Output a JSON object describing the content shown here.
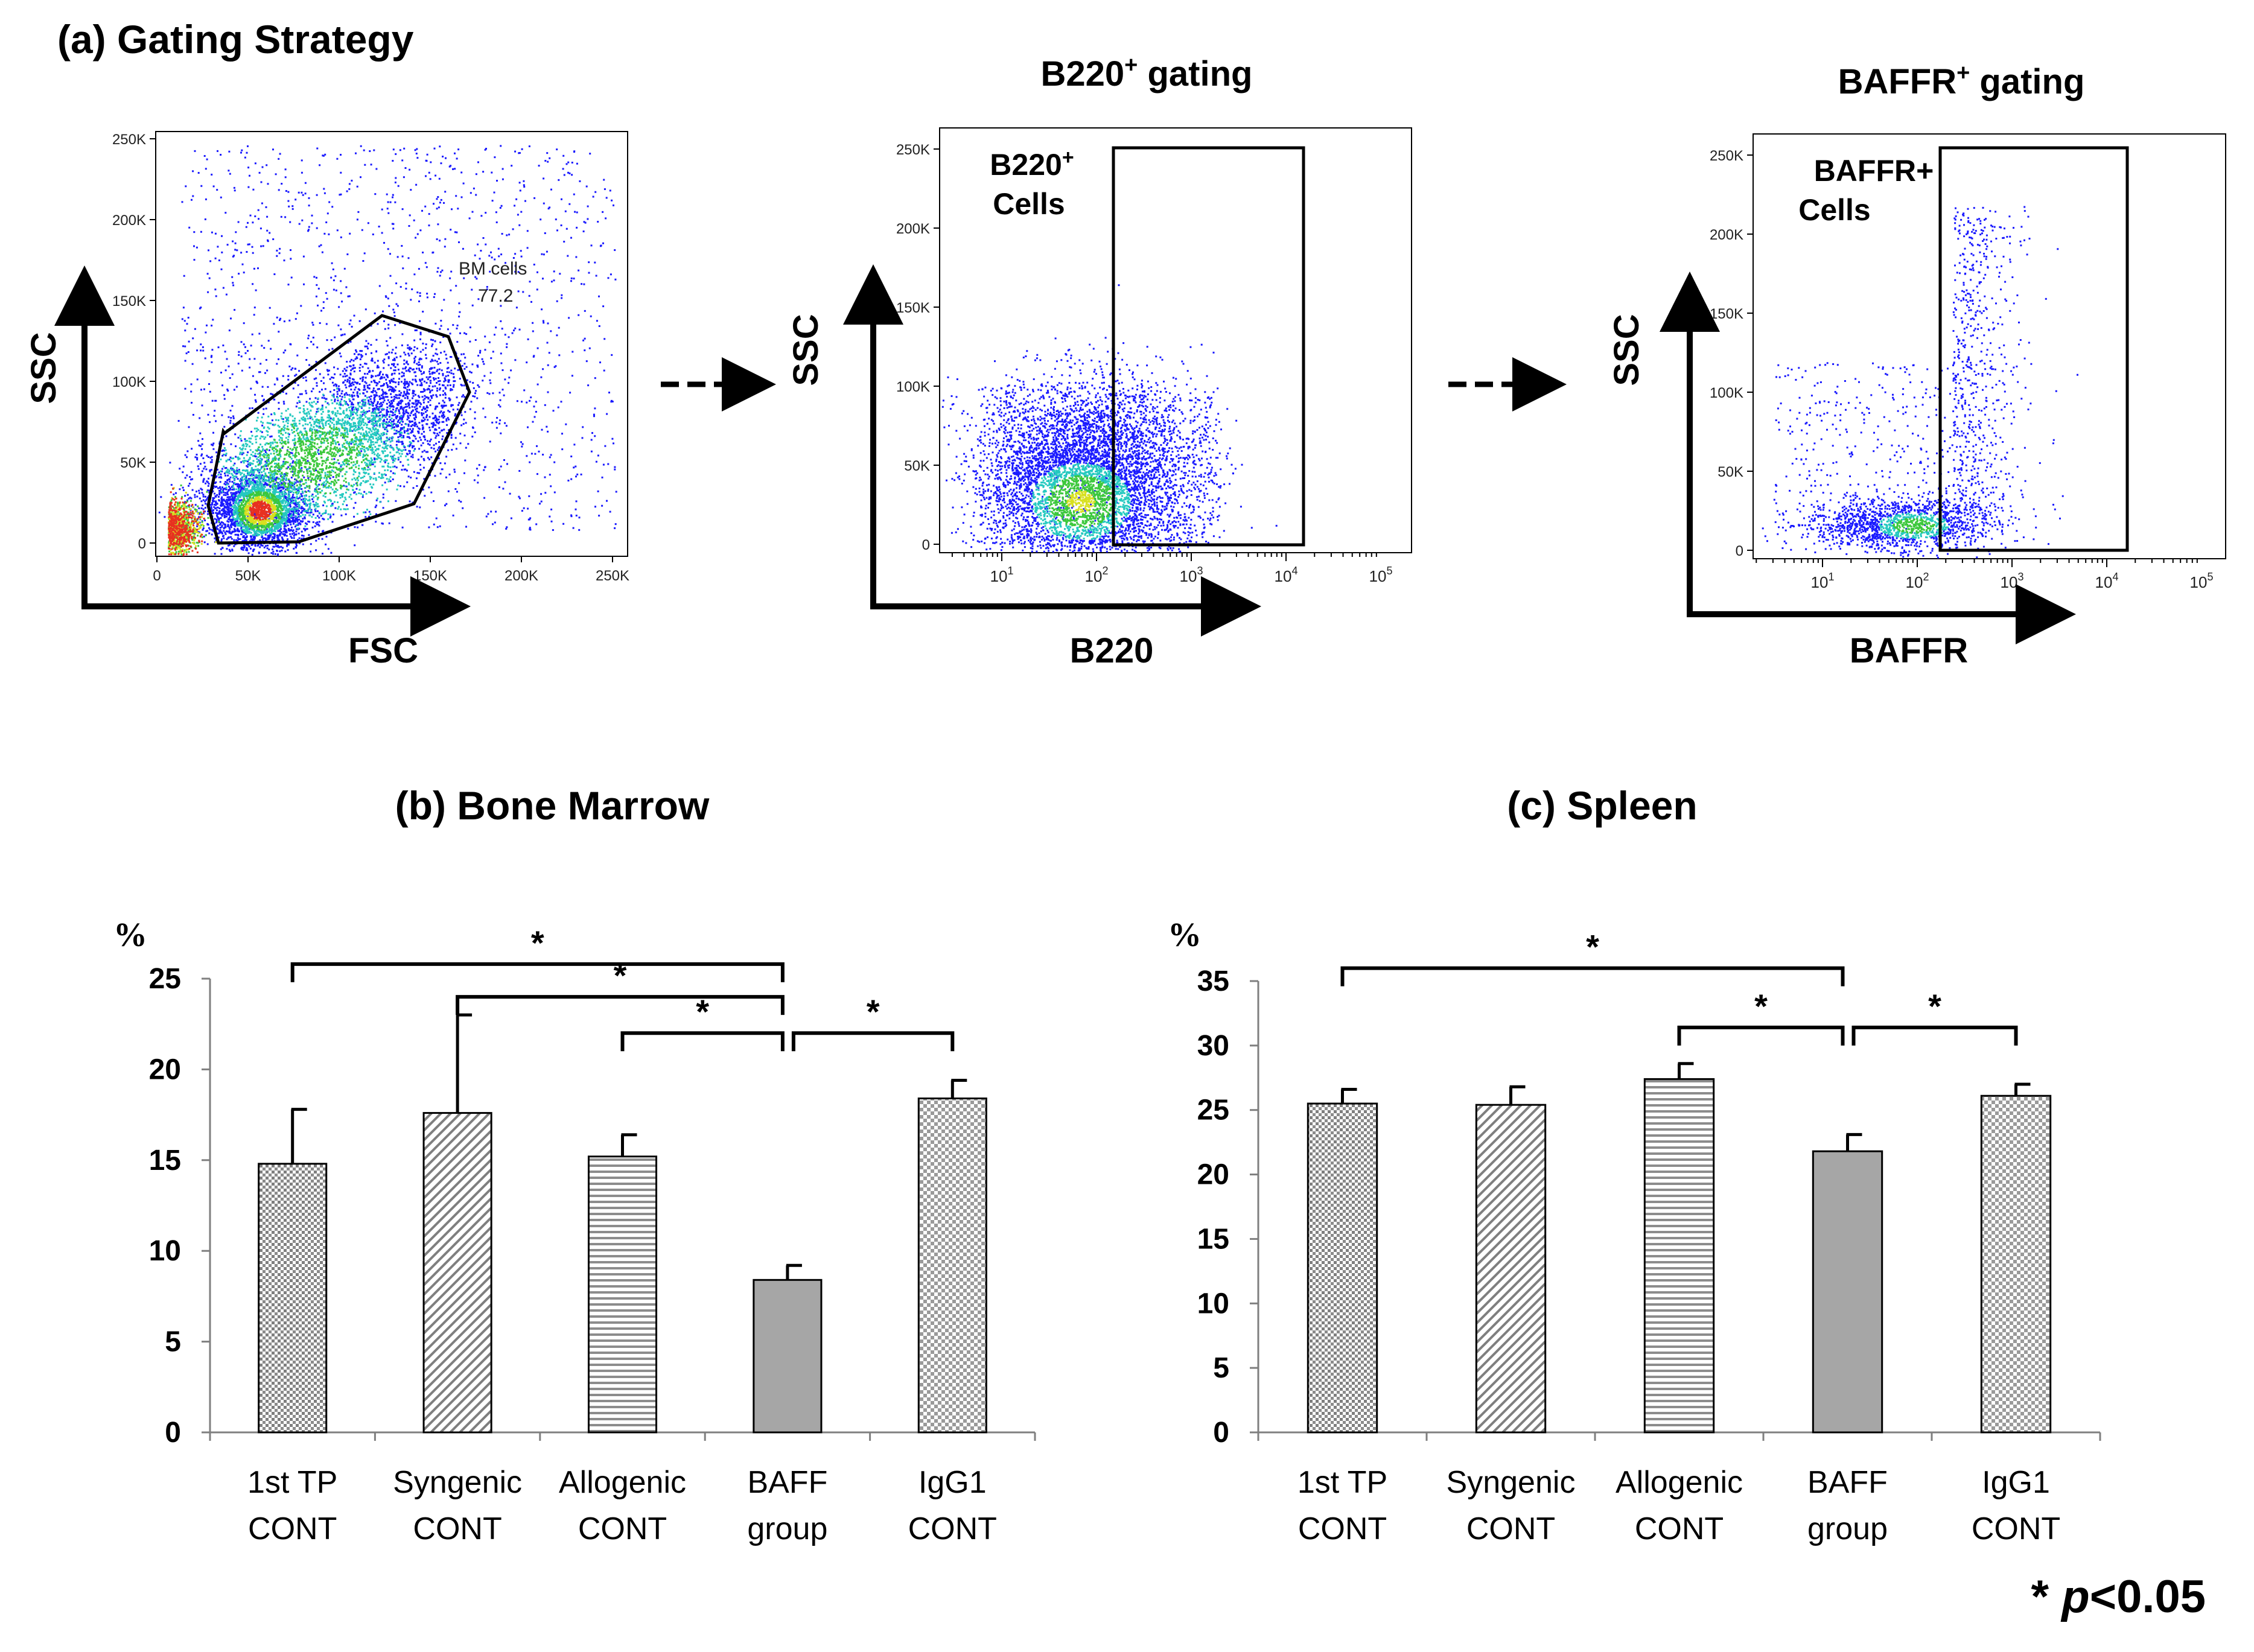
{
  "panel_a": {
    "title": "(a) Gating Strategy",
    "plots": [
      {
        "heading": "",
        "x_axis_label": "FSC",
        "y_axis_label": "SSC",
        "x_scale": "linear",
        "y_ticks": [
          "250K",
          "200K",
          "150K",
          "100K",
          "50K",
          "0"
        ],
        "x_ticks": [
          "0",
          "50K",
          "100K",
          "150K",
          "200K",
          "250K"
        ],
        "gate_label": "BM cells",
        "gate_value": "77.2"
      },
      {
        "heading": "B220",
        "heading_sup": "+",
        "heading_suffix": " gating",
        "x_axis_label": "B220",
        "y_axis_label": "SSC",
        "x_scale": "log",
        "y_ticks": [
          "250K",
          "200K",
          "150K",
          "100K",
          "50K",
          "0"
        ],
        "x_ticks": [
          "1",
          "2",
          "3",
          "4",
          "5"
        ],
        "gate_line1": "B220",
        "gate_line1_sup": "+",
        "gate_line2": "Cells"
      },
      {
        "heading": "BAFFR",
        "heading_sup": "+",
        "heading_suffix": " gating",
        "x_axis_label": "BAFFR",
        "y_axis_label": "SSC",
        "x_scale": "log",
        "y_ticks": [
          "250K",
          "200K",
          "150K",
          "100K",
          "50K",
          "0"
        ],
        "x_ticks": [
          "1",
          "2",
          "3",
          "4",
          "5"
        ],
        "gate_line1": "BAFFR+",
        "gate_line1_sup": "",
        "gate_line2": "Cells"
      }
    ]
  },
  "chart_data": [
    {
      "type": "bar",
      "title": "(b) Bone Marrow",
      "ylabel": "%",
      "ylim": [
        0,
        25
      ],
      "yticks": [
        0,
        5,
        10,
        15,
        20,
        25
      ],
      "categories": [
        [
          "1st TP",
          "CONT"
        ],
        [
          "Syngenic",
          "CONT"
        ],
        [
          "Allogenic",
          "CONT"
        ],
        [
          "BAFF",
          "group"
        ],
        [
          "IgG1",
          "CONT"
        ]
      ],
      "values": [
        14.8,
        17.6,
        15.2,
        8.4,
        18.4
      ],
      "errors": [
        3.0,
        5.4,
        1.2,
        0.8,
        1.0
      ],
      "fills": [
        "dots",
        "diag",
        "horiz",
        "solid",
        "check"
      ],
      "significance": [
        {
          "from": 0,
          "to": 3,
          "label": "*",
          "level": 25.8
        },
        {
          "from": 1,
          "to": 3,
          "label": "*",
          "level": 24.0
        },
        {
          "from": 2,
          "to": 3,
          "label": "*",
          "level": 22.0
        },
        {
          "from": 3,
          "to": 4,
          "label": "*",
          "level": 22.0
        }
      ]
    },
    {
      "type": "bar",
      "title": "(c) Spleen",
      "ylabel": "%",
      "ylim": [
        0,
        35
      ],
      "yticks": [
        0,
        5,
        10,
        15,
        20,
        25,
        30,
        35
      ],
      "categories": [
        [
          "1st TP",
          "CONT"
        ],
        [
          "Syngenic",
          "CONT"
        ],
        [
          "Allogenic",
          "CONT"
        ],
        [
          "BAFF",
          "group"
        ],
        [
          "IgG1",
          "CONT"
        ]
      ],
      "values": [
        25.5,
        25.4,
        27.4,
        21.8,
        26.1
      ],
      "errors": [
        1.1,
        1.4,
        1.2,
        1.3,
        0.9
      ],
      "fills": [
        "dots",
        "diag",
        "horiz",
        "solid",
        "check"
      ],
      "significance": [
        {
          "from": 0,
          "to": 3,
          "label": "*",
          "level": 36.0
        },
        {
          "from": 2,
          "to": 3,
          "label": "*",
          "level": 31.4
        },
        {
          "from": 3,
          "to": 4,
          "label": "*",
          "level": 31.4
        }
      ]
    }
  ],
  "footnote": {
    "star": "*",
    "p": "p",
    "rest": "<0.05"
  },
  "colors": {
    "ink": "#000000",
    "bar_solid": "#a6a6a6",
    "pattern_bg": "#ffffff",
    "pattern_fg": "#7f7f7f",
    "dot_blue": "#1a1aff",
    "dot_cyan": "#25c9c0",
    "dot_green": "#3cc83c",
    "dot_yellow": "#d8e020",
    "dot_red": "#e83020"
  }
}
